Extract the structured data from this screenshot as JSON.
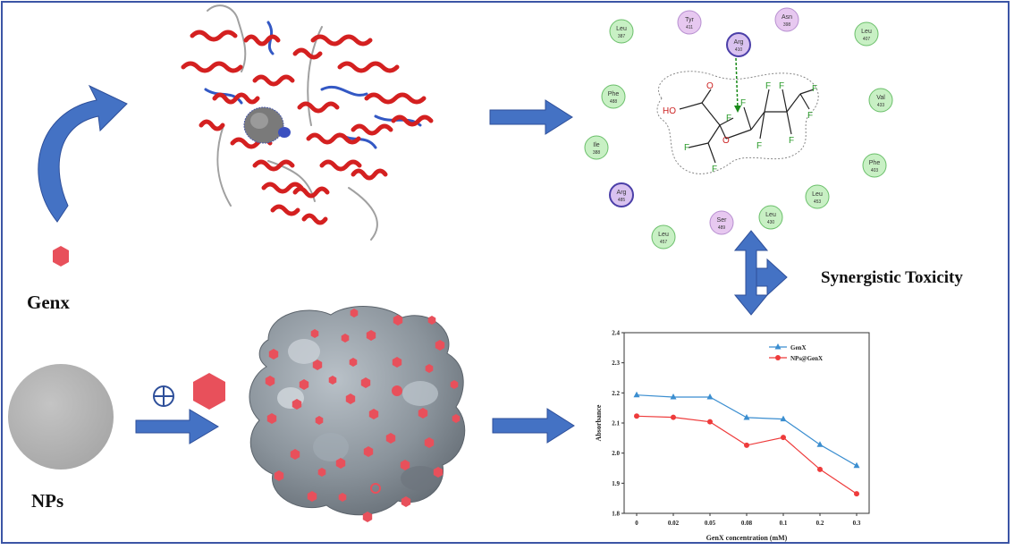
{
  "labels": {
    "genx": "Genx",
    "nps": "NPs",
    "synergy": "Synergistic Toxicity"
  },
  "residues": [
    {
      "name": "Leu",
      "num": "387",
      "kind": "hydrophobic"
    },
    {
      "name": "Tyr",
      "num": "411",
      "kind": "polar"
    },
    {
      "name": "Arg",
      "num": "410",
      "kind": "charged"
    },
    {
      "name": "Asn",
      "num": "398",
      "kind": "polar"
    },
    {
      "name": "Leu",
      "num": "407",
      "kind": "hydrophobic"
    },
    {
      "name": "Phe",
      "num": "488",
      "kind": "hydrophobic"
    },
    {
      "name": "Val",
      "num": "433",
      "kind": "hydrophobic"
    },
    {
      "name": "Ile",
      "num": "388",
      "kind": "hydrophobic"
    },
    {
      "name": "Phe",
      "num": "403",
      "kind": "hydrophobic"
    },
    {
      "name": "Arg",
      "num": "485",
      "kind": "charged"
    },
    {
      "name": "Leu",
      "num": "453",
      "kind": "hydrophobic"
    },
    {
      "name": "Ser",
      "num": "489",
      "kind": "polar"
    },
    {
      "name": "Leu",
      "num": "430",
      "kind": "hydrophobic"
    },
    {
      "name": "Leu",
      "num": "457",
      "kind": "hydrophobic"
    }
  ],
  "molecule": {
    "ho": "HO",
    "o_carbonyl": "O",
    "o_ether": "O",
    "fluorine": "F"
  },
  "colors": {
    "frame": "#3c55a5",
    "arrow": "#4472c4",
    "arrow_dark": "#2e4f9a",
    "hexagon": "#e8505b",
    "sphere": "#b3b3b3",
    "helix": "#d42020",
    "genx_series": "#3b8ed0",
    "nps_series": "#ee3b3b"
  },
  "chart_data": {
    "type": "line",
    "categories": [
      "0",
      "0.02",
      "0.05",
      "0.08",
      "0.1",
      "0.2",
      "0.3"
    ],
    "xlabel": "GenX concentration (mM)",
    "ylabel": "Absorbance",
    "ylim": [
      1.8,
      2.4
    ],
    "yticks": [
      "1.8",
      "1.9",
      "2.0",
      "2.1",
      "2.2",
      "2.3",
      "2.4"
    ],
    "legend_position": "top-right",
    "series": [
      {
        "name": "GenX",
        "marker": "triangle",
        "color": "#3b8ed0",
        "values": [
          2.193,
          2.186,
          2.186,
          2.118,
          2.113,
          2.028,
          1.958
        ]
      },
      {
        "name": "NPs@GenX",
        "marker": "circle",
        "color": "#ee3b3b",
        "values": [
          2.123,
          2.119,
          2.104,
          2.026,
          2.052,
          1.946,
          1.865
        ]
      }
    ]
  }
}
